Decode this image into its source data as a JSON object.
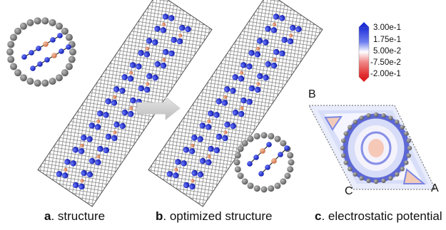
{
  "panels": [
    {
      "letter": "a",
      "title": "structure"
    },
    {
      "letter": "b",
      "title": "optimized structure"
    },
    {
      "letter": "c",
      "title": "electrostatic potential"
    }
  ],
  "colorbar": {
    "labels": [
      "3.00e-1",
      "1.75e-1",
      "5.00e-2",
      "-7.50e-2",
      "-2.00e-1"
    ],
    "colors": {
      "high": "#1f2fd6",
      "mid": "#ffffff",
      "low": "#e02020"
    }
  },
  "corners": {
    "a": "A",
    "b": "B",
    "c": "C"
  },
  "colors": {
    "carbon": "#7a7a7a",
    "chain_atom": "#1a2ad8",
    "boron_atom": "#e0885a",
    "arrow": "#cfcfcf"
  }
}
